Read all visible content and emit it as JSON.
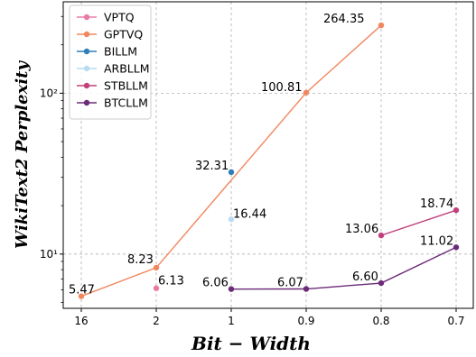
{
  "chart_data": {
    "type": "line",
    "categories": [
      "16",
      "2",
      "1",
      "0.9",
      "0.8",
      "0.7"
    ],
    "xlabel": "Bit − Width",
    "ylabel": "WikiText2 Perplexity",
    "y_scale": "log",
    "ylim": [
      4.6,
      370
    ],
    "y_ticks": [
      {
        "value": 10,
        "label": "10¹"
      },
      {
        "value": 100,
        "label": "10²"
      }
    ],
    "grid": true,
    "legend_position": "top-left",
    "series": [
      {
        "name": "VPTQ",
        "color": "#e87ba4",
        "points": [
          {
            "x": "2",
            "y": 6.13
          }
        ],
        "labels": [
          {
            "x": "2",
            "text": "6.13"
          }
        ]
      },
      {
        "name": "GPTVQ",
        "color": "#f0875e",
        "points": [
          {
            "x": "16",
            "y": 5.47
          },
          {
            "x": "2",
            "y": 8.23
          },
          {
            "x": "0.9",
            "y": 100.81
          },
          {
            "x": "0.8",
            "y": 264.35
          }
        ],
        "labels": [
          {
            "x": "16",
            "text": "5.47"
          },
          {
            "x": "2",
            "text": "8.23"
          },
          {
            "x": "0.9",
            "text": "100.81"
          },
          {
            "x": "0.8",
            "text": "264.35"
          }
        ]
      },
      {
        "name": "BILLM",
        "color": "#2e7fb8",
        "points": [
          {
            "x": "1",
            "y": 32.31
          }
        ],
        "labels": [
          {
            "x": "1",
            "text": "32.31"
          }
        ]
      },
      {
        "name": "ARBLLM",
        "color": "#b9dcf2",
        "points": [
          {
            "x": "1",
            "y": 16.44
          }
        ],
        "labels": [
          {
            "x": "1",
            "text": "16.44"
          }
        ]
      },
      {
        "name": "STBLLM",
        "color": "#c2417a",
        "points": [
          {
            "x": "0.8",
            "y": 13.06
          },
          {
            "x": "0.7",
            "y": 18.74
          }
        ],
        "labels": [
          {
            "x": "0.8",
            "text": "13.06"
          },
          {
            "x": "0.7",
            "text": "18.74"
          }
        ]
      },
      {
        "name": "BTCLLM",
        "color": "#6b2b78",
        "points": [
          {
            "x": "1",
            "y": 6.06
          },
          {
            "x": "0.9",
            "y": 6.07
          },
          {
            "x": "0.8",
            "y": 6.6
          },
          {
            "x": "0.7",
            "y": 11.02
          }
        ],
        "labels": [
          {
            "x": "1",
            "text": "6.06"
          },
          {
            "x": "0.9",
            "text": "6.07"
          },
          {
            "x": "0.8",
            "text": "6.60"
          },
          {
            "x": "0.7",
            "text": "11.02"
          }
        ]
      }
    ]
  }
}
